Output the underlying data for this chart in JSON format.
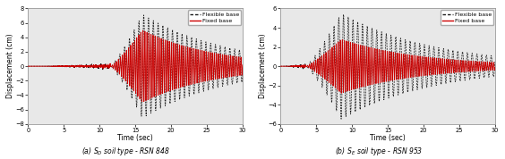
{
  "subplot_a": {
    "title": "(a) $S_D$ soil type - RSN 848",
    "ylim": [
      -8,
      8
    ],
    "yticks": [
      -8,
      -6,
      -4,
      -2,
      0,
      2,
      4,
      6,
      8
    ],
    "xlim": [
      0,
      30
    ],
    "xticks": [
      0,
      5,
      10,
      15,
      20,
      25,
      30
    ],
    "ylabel": "Displacement (cm)",
    "xlabel": "Time (sec)",
    "peak_time": 16.0,
    "peak_amp_flex": 7.2,
    "peak_amp_fixed": 5.0,
    "start_strong": 11.5,
    "end_strong": 20.0,
    "freq_flex": 1.5,
    "freq_fixed": 3.5,
    "decay_rate": 0.1
  },
  "subplot_b": {
    "title": "(b) $S_E$ soil type - RSN 953",
    "ylim": [
      -6,
      6
    ],
    "yticks": [
      -6,
      -4,
      -2,
      0,
      2,
      4,
      6
    ],
    "xlim": [
      0,
      30
    ],
    "xticks": [
      0,
      5,
      10,
      15,
      20,
      25,
      30
    ],
    "ylabel": "Displacement (cm)",
    "xlabel": "Time (sec)",
    "peak_time": 8.5,
    "peak_amp_flex": 5.5,
    "peak_amp_fixed": 2.8,
    "start_strong": 3.5,
    "end_strong": 12.0,
    "freq_flex": 1.5,
    "freq_fixed": 3.5,
    "decay_rate": 0.09
  },
  "legend_flex": "Flexible base",
  "legend_fixed": "Fixed base",
  "color_flex": "#1a1a1a",
  "color_fixed": "#cc0000",
  "lw_flex": 0.55,
  "lw_fixed": 0.65,
  "ax_bg": "#e8e8e8"
}
